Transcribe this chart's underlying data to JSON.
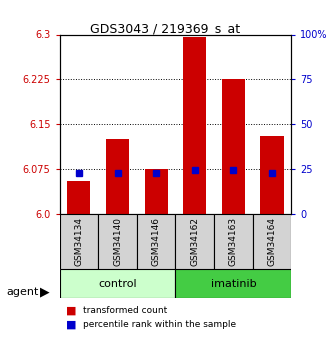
{
  "title": "GDS3043 / 219369_s_at",
  "samples": [
    "GSM34134",
    "GSM34140",
    "GSM34146",
    "GSM34162",
    "GSM34163",
    "GSM34164"
  ],
  "groups": [
    "control",
    "control",
    "control",
    "imatinib",
    "imatinib",
    "imatinib"
  ],
  "transformed_counts": [
    6.055,
    6.125,
    6.075,
    6.295,
    6.225,
    6.13
  ],
  "percentile_ranks": [
    6.068,
    6.068,
    6.068,
    6.073,
    6.073,
    6.068
  ],
  "ylim_left": [
    6.0,
    6.3
  ],
  "yticks_left": [
    6.0,
    6.075,
    6.15,
    6.225,
    6.3
  ],
  "yticks_right": [
    0,
    25,
    50,
    75,
    100
  ],
  "ylim_right": [
    0,
    100
  ],
  "bar_color": "#cc0000",
  "pct_color": "#0000cc",
  "control_color": "#ccffcc",
  "imatinib_color": "#44cc44",
  "bar_width": 0.6,
  "legend_items": [
    "transformed count",
    "percentile rank within the sample"
  ],
  "left_label_color": "#cc0000",
  "right_label_color": "#0000cc",
  "background_plot": "#ffffff",
  "agent_label": "agent"
}
